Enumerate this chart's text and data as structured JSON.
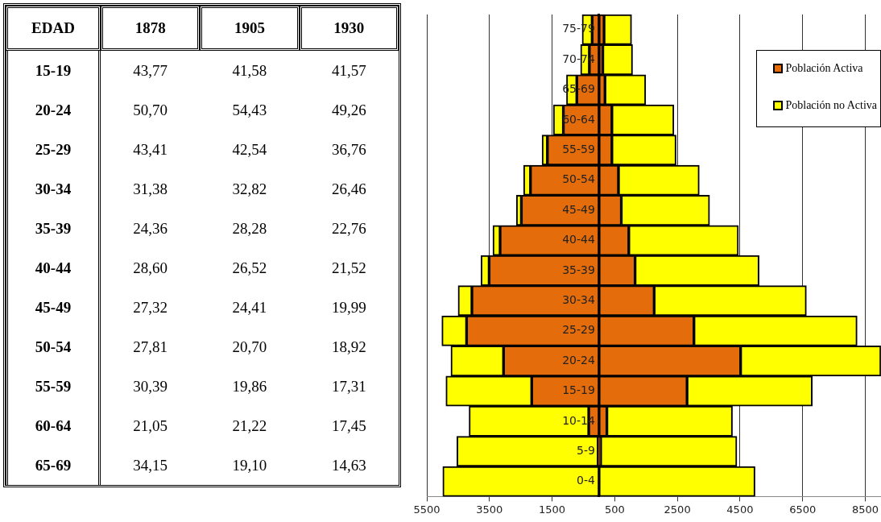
{
  "chart_data": [
    {
      "type": "heatmap",
      "ylabel": "EDAD",
      "categories": [
        "1878",
        "1905",
        "1930"
      ],
      "y_categories": [
        "15-19",
        "20-24",
        "25-29",
        "30-34",
        "35-39",
        "40-44",
        "45-49",
        "50-54",
        "55-59",
        "60-64",
        "65-69"
      ],
      "cells": [
        [
          43.77,
          41.58,
          41.57
        ],
        [
          50.7,
          54.43,
          49.26
        ],
        [
          43.41,
          42.54,
          36.76
        ],
        [
          31.38,
          32.82,
          26.46
        ],
        [
          24.36,
          28.28,
          22.76
        ],
        [
          28.6,
          26.52,
          21.52
        ],
        [
          27.32,
          24.41,
          19.99
        ],
        [
          27.81,
          20.7,
          18.92
        ],
        [
          30.39,
          19.86,
          17.31
        ],
        [
          21.05,
          21.22,
          17.45
        ],
        [
          34.15,
          19.1,
          14.63
        ]
      ],
      "cell_labels": [
        [
          "43,77",
          "41,58",
          "41,57"
        ],
        [
          "50,70",
          "54,43",
          "49,26"
        ],
        [
          "43,41",
          "42,54",
          "36,76"
        ],
        [
          "31,38",
          "32,82",
          "26,46"
        ],
        [
          "24,36",
          "28,28",
          "22,76"
        ],
        [
          "28,60",
          "26,52",
          "21,52"
        ],
        [
          "27,32",
          "24,41",
          "19,99"
        ],
        [
          "27,81",
          "20,70",
          "18,92"
        ],
        [
          "30,39",
          "19,86",
          "17,31"
        ],
        [
          "21,05",
          "21,22",
          "17,45"
        ],
        [
          "34,15",
          "19,10",
          "14,63"
        ]
      ]
    },
    {
      "type": "bar",
      "orientation": "horizontal",
      "stacked": true,
      "categories": [
        "75-79",
        "70-74",
        "65-69",
        "60-64",
        "55-59",
        "50-54",
        "45-49",
        "40-44",
        "35-39",
        "30-34",
        "25-29",
        "20-24",
        "15-19",
        "10-14",
        "5-9",
        "0-4"
      ],
      "series": [
        {
          "color": "#e46c0a",
          "values": [
            -220,
            -310,
            -710,
            -1140,
            -1650,
            -2190,
            -2480,
            -3160,
            -3510,
            -4060,
            -4230,
            -3050,
            -2150,
            -330,
            -30,
            0
          ]
        },
        {
          "color": "#ffff00",
          "values": [
            -320,
            -280,
            -330,
            -320,
            -170,
            -220,
            -160,
            -230,
            -260,
            -440,
            -790,
            -1680,
            -2740,
            -3820,
            -4510,
            -4990
          ]
        },
        {
          "name": "Población Activa",
          "color": "#e46c0a",
          "values": [
            160,
            120,
            190,
            410,
            410,
            620,
            710,
            950,
            1150,
            1760,
            3030,
            4520,
            2810,
            250,
            50,
            0
          ]
        },
        {
          "name": "Población no Activa",
          "color": "#ffff00",
          "values": [
            880,
            950,
            1300,
            1980,
            2050,
            2580,
            2820,
            3500,
            3960,
            4860,
            5210,
            4480,
            4000,
            4010,
            4350,
            4980
          ]
        }
      ],
      "xlim": [
        -5500,
        9000
      ],
      "xticks": [
        {
          "value": -5500,
          "label": "5500"
        },
        {
          "value": -3500,
          "label": "3500"
        },
        {
          "value": -1500,
          "label": "1500"
        },
        500,
        2500,
        4500,
        6500,
        8500
      ],
      "grid": "x",
      "legend": "top right"
    }
  ]
}
